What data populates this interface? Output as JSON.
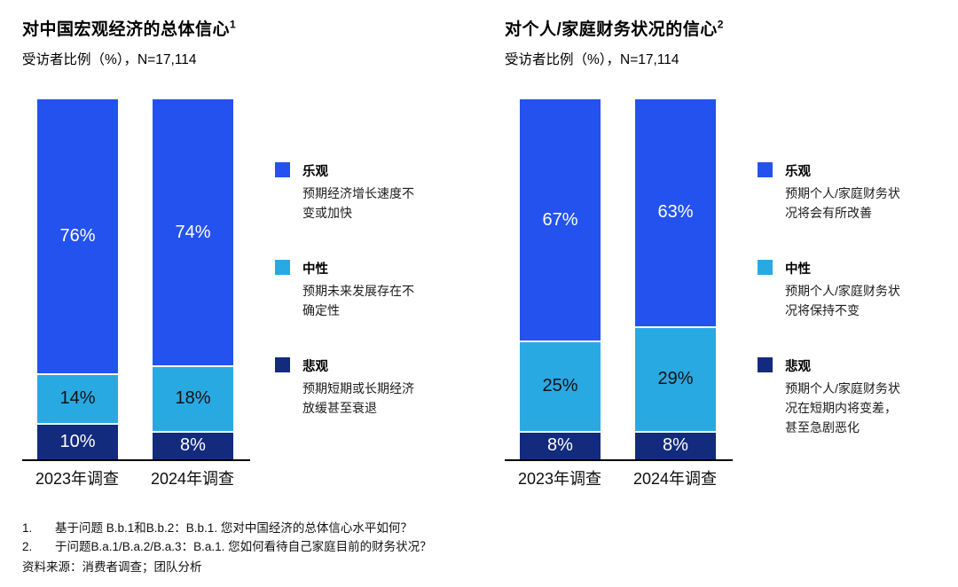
{
  "chart_data": [
    {
      "type": "bar",
      "stacked": true,
      "title": "对中国宏观经济的总体信心",
      "title_sup": "1",
      "subtitle": "受访者比例（%），N=17,114",
      "categories": [
        "2023年调查",
        "2024年调查"
      ],
      "series": [
        {
          "name": "乐观",
          "values": [
            76,
            74
          ],
          "color": "#2452EE",
          "text_color": "#ffffff",
          "description": "预期经济增长速度不变或加快"
        },
        {
          "name": "中性",
          "values": [
            14,
            18
          ],
          "color": "#29A9E2",
          "text_color": "#101114",
          "description": "预期未来发展存在不确定性"
        },
        {
          "name": "悲观",
          "values": [
            10,
            8
          ],
          "color": "#132B7D",
          "text_color": "#ffffff",
          "description": "预期短期或长期经济放缓甚至衰退"
        }
      ],
      "ylim": [
        0,
        100
      ],
      "value_suffix": "%",
      "legend_position": "right",
      "grid": false
    },
    {
      "type": "bar",
      "stacked": true,
      "title": "对个人/家庭财务状况的信心",
      "title_sup": "2",
      "subtitle": "受访者比例（%），N=17,114",
      "categories": [
        "2023年调查",
        "2024年调查"
      ],
      "series": [
        {
          "name": "乐观",
          "values": [
            67,
            63
          ],
          "color": "#2452EE",
          "text_color": "#ffffff",
          "description": "预期个人/家庭财务状况将会有所改善"
        },
        {
          "name": "中性",
          "values": [
            25,
            29
          ],
          "color": "#29A9E2",
          "text_color": "#101114",
          "description": "预期个人/家庭财务状况将保持不变"
        },
        {
          "name": "悲观",
          "values": [
            8,
            8
          ],
          "color": "#132B7D",
          "text_color": "#ffffff",
          "description": "预期个人/家庭财务状况在短期内将变差，甚至急剧恶化"
        }
      ],
      "ylim": [
        0,
        100
      ],
      "value_suffix": "%",
      "legend_position": "right",
      "grid": false
    }
  ],
  "footnotes": [
    {
      "marker": "1.",
      "text": "基于问题 B.b.1和B.b.2：B.b.1. 您对中国经济的总体信心水平如何？"
    },
    {
      "marker": "2.",
      "text": "于问题B.a.1/B.a.2/B.a.3：B.a.1. 您如何看待自己家庭目前的财务状况？"
    }
  ],
  "source": "资料来源：消费者调查；团队分析"
}
